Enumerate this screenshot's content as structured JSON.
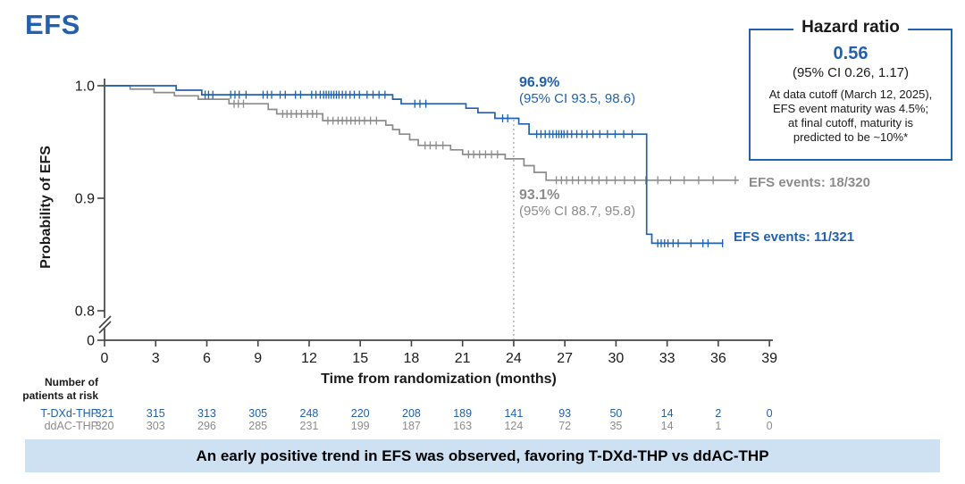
{
  "title": "EFS",
  "colors": {
    "blue": "#2161AD",
    "gray": "#8B8B8B",
    "axis": "#444444",
    "dotted": "#AAAAAA",
    "banner_bg": "#CDE1F3",
    "text_black": "#1A1A1A"
  },
  "hazard_box": {
    "title": "Hazard ratio",
    "value": "0.56",
    "ci": "(95% CI 0.26, 1.17)",
    "note_lines": [
      "At data cutoff (March 12, 2025),",
      "EFS event maturity was 4.5%;",
      "at final cutoff, maturity is",
      "predicted to be ~10%*"
    ]
  },
  "annotations": {
    "blue_pct": "96.9%",
    "blue_ci": "(95% CI 93.5, 98.6)",
    "gray_pct": "93.1%",
    "gray_ci": "(95% CI 88.7, 95.8)",
    "gray_events": "EFS events: 18/320",
    "blue_events": "EFS events: 11/321"
  },
  "chart_data": {
    "type": "line",
    "subtype": "kaplan-meier-step",
    "title": "EFS",
    "xlabel": "Time from randomization (months)",
    "ylabel": "Probability of EFS",
    "xlim": [
      0,
      39
    ],
    "x_ticks": [
      0,
      3,
      6,
      9,
      12,
      15,
      18,
      21,
      24,
      27,
      30,
      33,
      36,
      39
    ],
    "y_ticks": [
      {
        "label": "1.0",
        "v": 1.0
      },
      {
        "label": "0.9",
        "v": 0.9
      },
      {
        "label": "0.8",
        "v": 0.8
      },
      {
        "label": "0",
        "v": 0
      }
    ],
    "y_axis_break": true,
    "grid": false,
    "reference_line_x": 24,
    "legend_position": "none",
    "series": [
      {
        "name": "T-DXd-THP",
        "color": "#2161AD",
        "start_value": 1.0,
        "end_month": 36.3,
        "steps": [
          [
            4.2,
            0.996
          ],
          [
            5.7,
            0.992
          ],
          [
            16.9,
            0.988
          ],
          [
            17.4,
            0.984
          ],
          [
            21.2,
            0.98
          ],
          [
            21.9,
            0.976
          ],
          [
            22.9,
            0.971
          ],
          [
            24.3,
            0.966
          ],
          [
            24.9,
            0.957
          ],
          [
            31.8,
            0.868
          ],
          [
            32.1,
            0.86
          ]
        ],
        "value_at_24mo": "96.9%",
        "ci_at_24mo": "(95% CI 93.5, 98.6)",
        "events": "11/321",
        "censors": [
          {
            "v": 0.992,
            "months": [
              5.9,
              6.1,
              6.35,
              7.4,
              7.65,
              7.9,
              8.3,
              9.3,
              9.55,
              9.8,
              10.3,
              10.6,
              11.2,
              11.5,
              12.15,
              12.4,
              12.65,
              12.85,
              13.0,
              13.15,
              13.3,
              13.45,
              13.6,
              13.75,
              13.95,
              14.15,
              14.4,
              14.65,
              14.95,
              15.4,
              15.75,
              16.1,
              16.45
            ]
          },
          {
            "v": 0.984,
            "months": [
              18.2,
              18.5,
              18.85
            ]
          },
          {
            "v": 0.971,
            "months": [
              23.35,
              23.65
            ]
          },
          {
            "v": 0.957,
            "months": [
              25.35,
              25.6,
              25.85,
              26.1,
              26.3,
              26.5,
              26.65,
              26.8,
              26.95,
              27.15,
              27.4,
              27.7,
              28.0,
              28.3,
              28.65,
              29.05,
              29.5,
              29.95,
              30.45,
              30.95
            ]
          },
          {
            "v": 0.86,
            "months": [
              32.45,
              32.65,
              32.85,
              33.05,
              33.35,
              33.65,
              34.4,
              35.1,
              35.4,
              36.25
            ]
          }
        ]
      },
      {
        "name": "ddAC-THP",
        "color": "#8B8B8B",
        "start_value": 1.0,
        "end_month": 37.2,
        "steps": [
          [
            1.5,
            0.997
          ],
          [
            2.9,
            0.994
          ],
          [
            4.1,
            0.991
          ],
          [
            5.5,
            0.988
          ],
          [
            7.3,
            0.984
          ],
          [
            9.6,
            0.979
          ],
          [
            10.1,
            0.975
          ],
          [
            12.8,
            0.969
          ],
          [
            16.5,
            0.965
          ],
          [
            16.9,
            0.961
          ],
          [
            17.3,
            0.957
          ],
          [
            17.9,
            0.952
          ],
          [
            18.4,
            0.947
          ],
          [
            20.3,
            0.943
          ],
          [
            21.0,
            0.939
          ],
          [
            23.5,
            0.935
          ],
          [
            24.6,
            0.929
          ],
          [
            25.2,
            0.923
          ],
          [
            25.9,
            0.916
          ]
        ],
        "value_at_24mo": "93.1%",
        "ci_at_24mo": "(95% CI 88.7, 95.8)",
        "events": "18/320",
        "censors": [
          {
            "v": 0.984,
            "months": [
              7.6,
              7.85,
              8.15
            ]
          },
          {
            "v": 0.975,
            "months": [
              10.45,
              10.7,
              10.95,
              11.25,
              11.55,
              11.9,
              12.2,
              12.45
            ]
          },
          {
            "v": 0.969,
            "months": [
              13.1,
              13.4,
              13.7,
              13.95,
              14.2,
              14.45,
              14.7,
              14.95,
              15.25,
              15.6,
              15.95
            ]
          },
          {
            "v": 0.947,
            "months": [
              18.8,
              19.1,
              19.45,
              19.85
            ]
          },
          {
            "v": 0.939,
            "months": [
              21.35,
              21.65,
              22.0,
              22.35,
              22.7,
              23.05
            ]
          },
          {
            "v": 0.916,
            "months": [
              26.5,
              26.8,
              27.1,
              27.45,
              27.8,
              28.2,
              28.6,
              29.0,
              29.45,
              29.95,
              30.5,
              31.1,
              31.75,
              32.45,
              33.2,
              34.0,
              34.85,
              35.7,
              37.0
            ]
          }
        ]
      }
    ]
  },
  "risk_table": {
    "header_line1": "Number of",
    "header_line2": "patients at risk",
    "rows": [
      {
        "label": "T-DXd-THP",
        "color": "#2161AD",
        "values": [
          321,
          315,
          313,
          305,
          248,
          220,
          208,
          189,
          141,
          93,
          50,
          14,
          2,
          0
        ]
      },
      {
        "label": "ddAC-THP",
        "color": "#8B8B8B",
        "values": [
          320,
          303,
          296,
          285,
          231,
          199,
          187,
          163,
          124,
          72,
          35,
          14,
          1,
          0
        ]
      }
    ]
  },
  "banner": {
    "text": "An early positive trend in EFS was observed, favoring T-DXd-THP vs ddAC-THP"
  }
}
